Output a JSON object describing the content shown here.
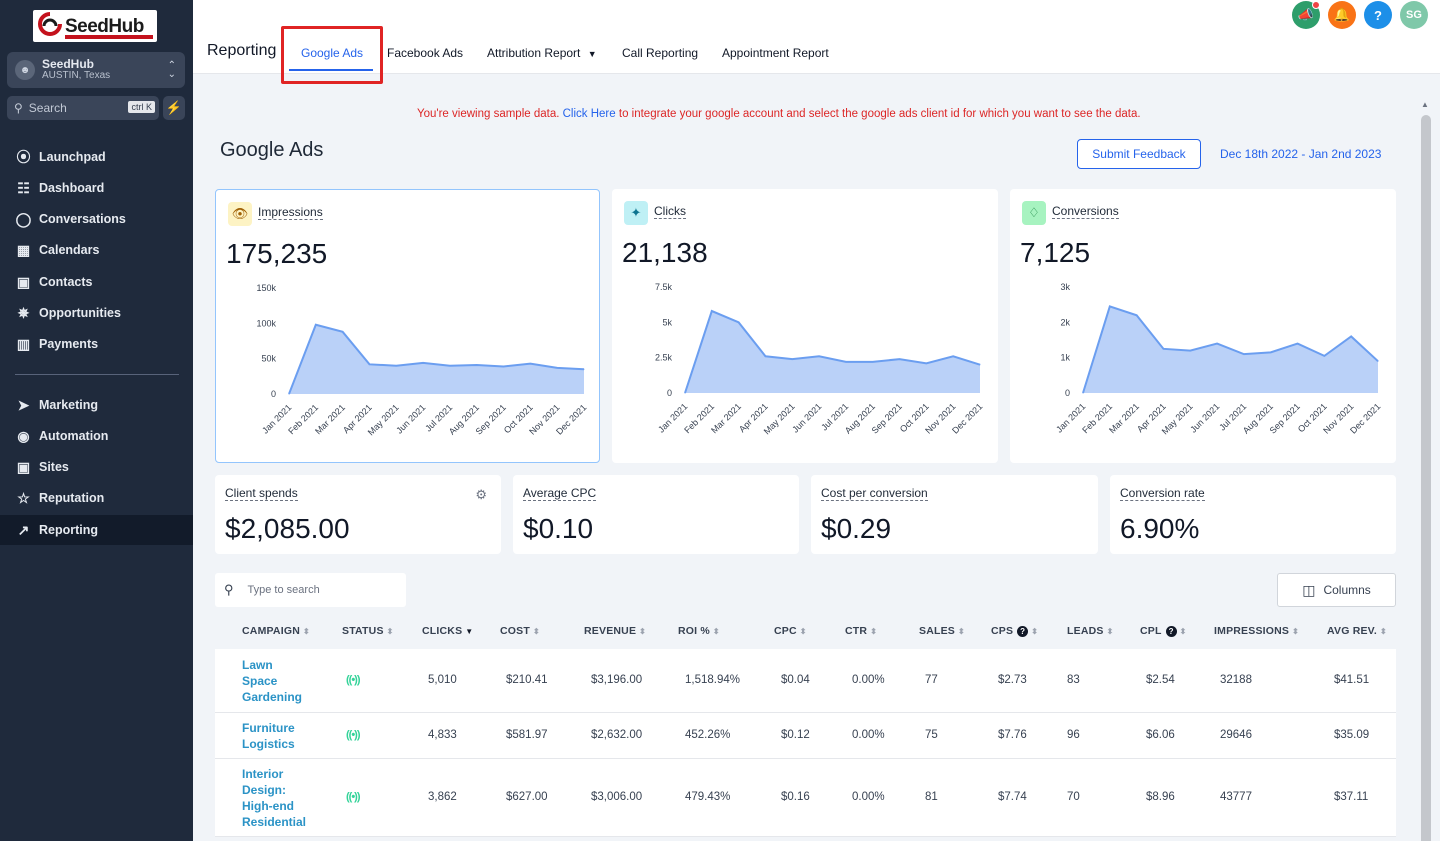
{
  "brand": {
    "name": "SeedHub"
  },
  "account": {
    "name": "SeedHub",
    "location": "AUSTIN, Texas"
  },
  "sidebar_search": {
    "placeholder": "Search",
    "shortcut": "ctrl K"
  },
  "nav": [
    {
      "label": "Launchpad",
      "icon": "rocket-icon"
    },
    {
      "label": "Dashboard",
      "icon": "grid-icon"
    },
    {
      "label": "Conversations",
      "icon": "chat-icon"
    },
    {
      "label": "Calendars",
      "icon": "calendar-icon"
    },
    {
      "label": "Contacts",
      "icon": "contacts-icon"
    },
    {
      "label": "Opportunities",
      "icon": "pipeline-icon"
    },
    {
      "label": "Payments",
      "icon": "payments-icon"
    },
    {
      "label": "Marketing",
      "icon": "send-icon"
    },
    {
      "label": "Automation",
      "icon": "automation-icon"
    },
    {
      "label": "Sites",
      "icon": "sites-icon"
    },
    {
      "label": "Reputation",
      "icon": "star-icon"
    },
    {
      "label": "Reporting",
      "icon": "trend-icon",
      "active": true
    }
  ],
  "header": {
    "title": "Reporting",
    "tabs": [
      "Google Ads",
      "Facebook Ads",
      "Attribution Report",
      "Call Reporting",
      "Appointment Report"
    ],
    "active_tab": "Google Ads",
    "avatar_initials": "SG",
    "icon_colors": {
      "announce": "#2e9e6b",
      "bell": "#f97316",
      "help": "#1d8fe8",
      "avatar": "#7fc8a9"
    }
  },
  "notice": {
    "prefix": "You're viewing sample data.",
    "link": "Click Here",
    "suffix": "to integrate your google account and select the google ads client id for which you want to see the data."
  },
  "page": {
    "title": "Google Ads",
    "feedback_label": "Submit Feedback",
    "date_range": "Dec 18th 2022 - Jan 2nd 2023"
  },
  "chart_data": [
    {
      "type": "area",
      "title": "Impressions",
      "total": "175,235",
      "categories": [
        "Jan 2021",
        "Feb 2021",
        "Mar 2021",
        "Apr 2021",
        "May 2021",
        "Jun 2021",
        "Jul 2021",
        "Aug 2021",
        "Sep 2021",
        "Oct 2021",
        "Nov 2021",
        "Dec 2021"
      ],
      "values": [
        0,
        98000,
        88000,
        42000,
        40000,
        44000,
        40000,
        41000,
        39000,
        43000,
        37000,
        35000
      ],
      "yticks": [
        "0",
        "50k",
        "100k",
        "150k"
      ],
      "ylim": [
        0,
        150000
      ],
      "color": "#6b9ef0"
    },
    {
      "type": "area",
      "title": "Clicks",
      "total": "21,138",
      "categories": [
        "Jan 2021",
        "Feb 2021",
        "Mar 2021",
        "Apr 2021",
        "May 2021",
        "Jun 2021",
        "Jul 2021",
        "Aug 2021",
        "Sep 2021",
        "Oct 2021",
        "Nov 2021",
        "Dec 2021"
      ],
      "values": [
        0,
        5800,
        5000,
        2600,
        2400,
        2600,
        2200,
        2200,
        2400,
        2100,
        2600,
        2000
      ],
      "yticks": [
        "0",
        "2.5k",
        "5k",
        "7.5k"
      ],
      "ylim": [
        0,
        7500
      ],
      "color": "#6b9ef0"
    },
    {
      "type": "area",
      "title": "Conversions",
      "total": "7,125",
      "categories": [
        "Jan 2021",
        "Feb 2021",
        "Mar 2021",
        "Apr 2021",
        "May 2021",
        "Jun 2021",
        "Jul 2021",
        "Aug 2021",
        "Sep 2021",
        "Oct 2021",
        "Nov 2021",
        "Dec 2021"
      ],
      "values": [
        0,
        2450,
        2200,
        1250,
        1200,
        1400,
        1100,
        1150,
        1400,
        1050,
        1600,
        900
      ],
      "yticks": [
        "0",
        "1k",
        "2k",
        "3k"
      ],
      "ylim": [
        0,
        3000
      ],
      "color": "#6b9ef0"
    }
  ],
  "kpis": [
    {
      "label": "Client spends",
      "value": "$2,085.00"
    },
    {
      "label": "Average CPC",
      "value": "$0.10"
    },
    {
      "label": "Cost per conversion",
      "value": "$0.29"
    },
    {
      "label": "Conversion rate",
      "value": "6.90%"
    }
  ],
  "table": {
    "search_placeholder": "Type to search",
    "columns_label": "Columns",
    "headers": [
      "CAMPAIGN",
      "STATUS",
      "CLICKS",
      "COST",
      "REVENUE",
      "ROI %",
      "CPC",
      "CTR",
      "SALES",
      "CPS",
      "LEADS",
      "CPL",
      "IMPRESSIONS",
      "AVG REV."
    ],
    "rows": [
      {
        "campaign": [
          "Lawn",
          "Space",
          "Gardening"
        ],
        "clicks": "5,010",
        "cost": "$210.41",
        "revenue": "$3,196.00",
        "roi": "1,518.94%",
        "cpc": "$0.04",
        "ctr": "0.00%",
        "sales": "77",
        "cps": "$2.73",
        "leads": "83",
        "cpl": "$2.54",
        "impressions": "32188",
        "avg_rev": "$41.51"
      },
      {
        "campaign": [
          "Furniture",
          "Logistics"
        ],
        "clicks": "4,833",
        "cost": "$581.97",
        "revenue": "$2,632.00",
        "roi": "452.26%",
        "cpc": "$0.12",
        "ctr": "0.00%",
        "sales": "75",
        "cps": "$7.76",
        "leads": "96",
        "cpl": "$6.06",
        "impressions": "29646",
        "avg_rev": "$35.09"
      },
      {
        "campaign": [
          "Interior",
          "Design:",
          "High-end",
          "Residential"
        ],
        "clicks": "3,862",
        "cost": "$627.00",
        "revenue": "$3,006.00",
        "roi": "479.43%",
        "cpc": "$0.16",
        "ctr": "0.00%",
        "sales": "81",
        "cps": "$7.74",
        "leads": "70",
        "cpl": "$8.96",
        "impressions": "43777",
        "avg_rev": "$37.11"
      }
    ]
  }
}
